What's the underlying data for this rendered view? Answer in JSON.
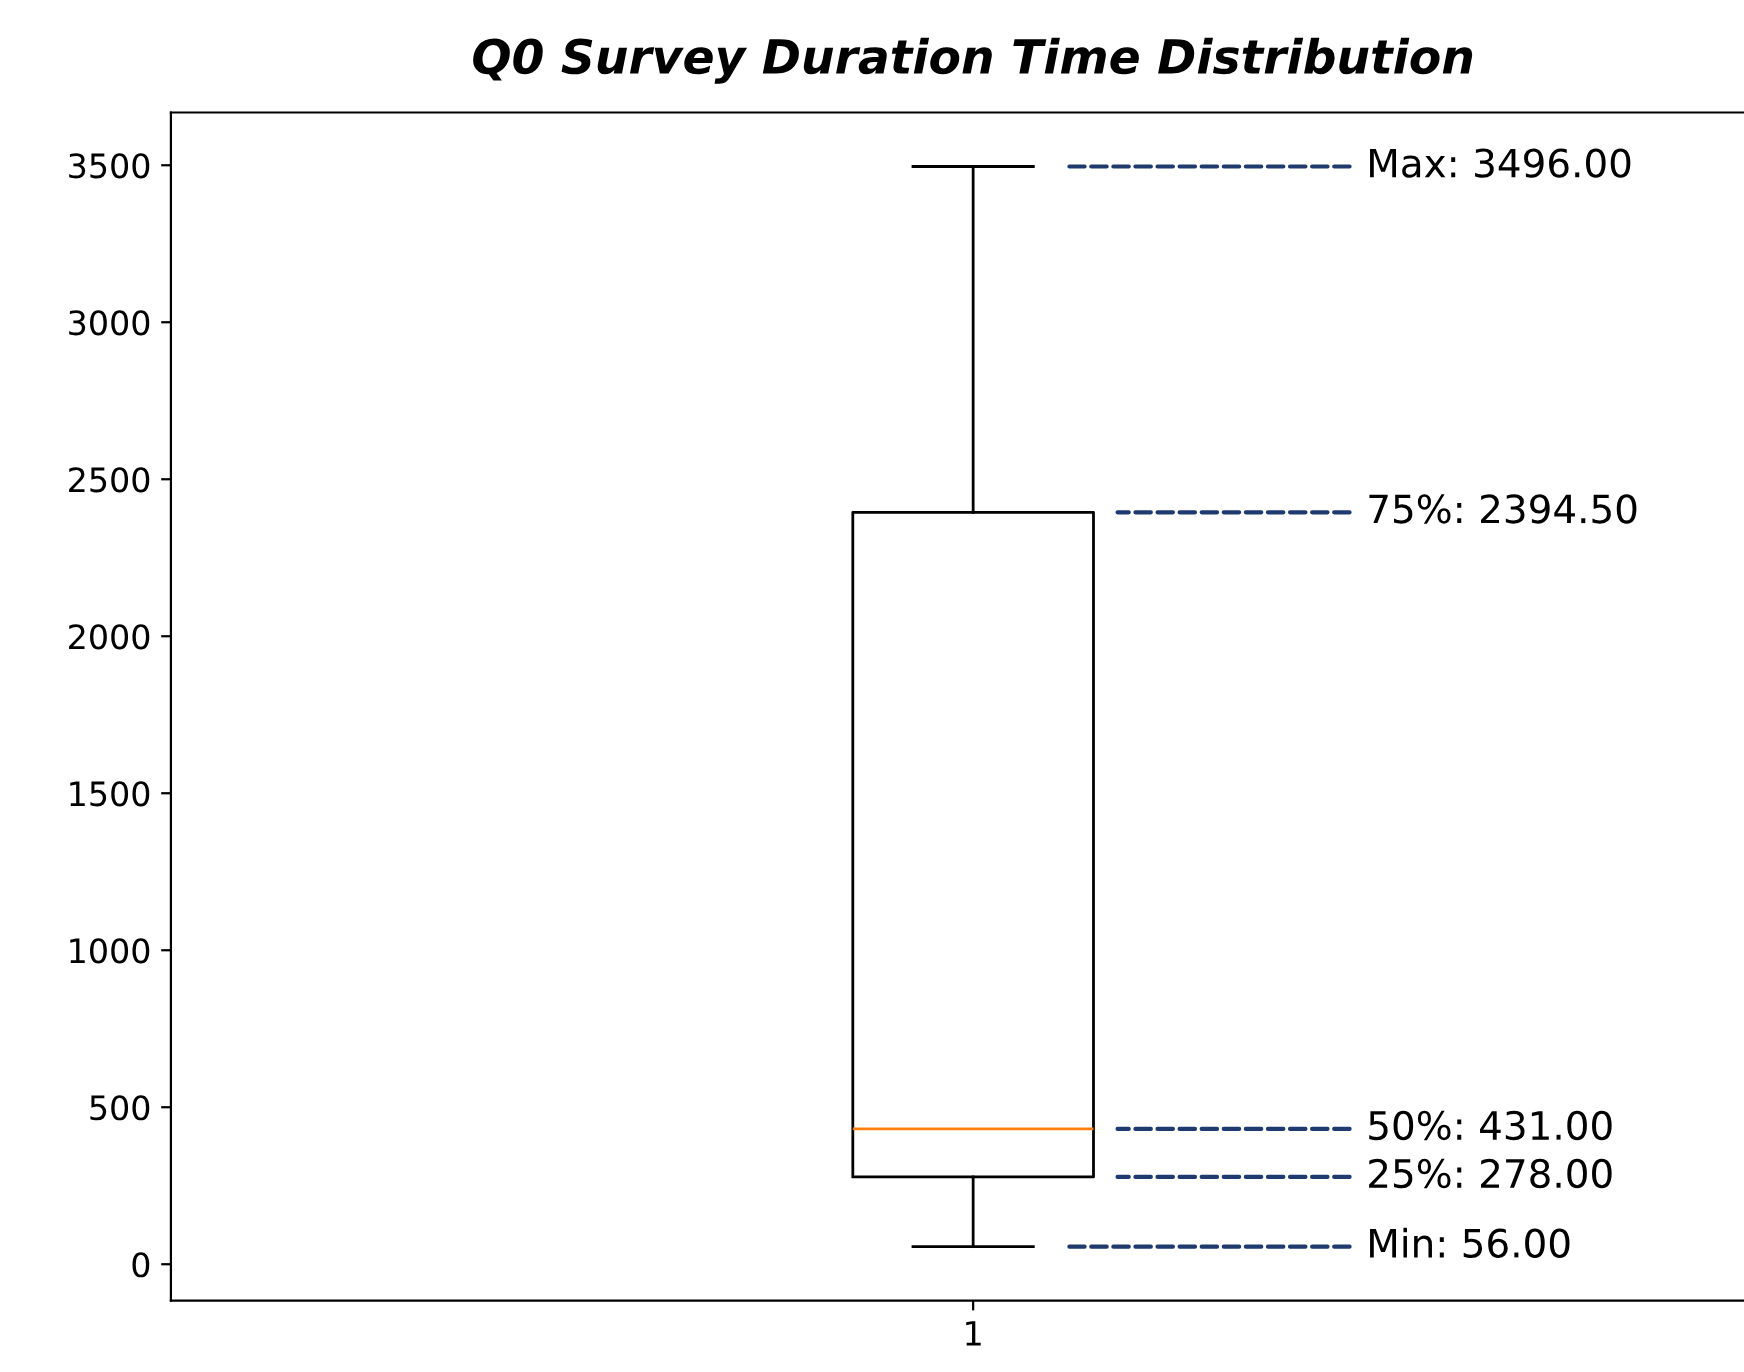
{
  "chart_data": {
    "type": "box",
    "title": "Q0 Survey Duration Time Distribution",
    "categories": [
      "1"
    ],
    "boxes": [
      {
        "low": 56,
        "q1": 278,
        "median": 431,
        "q3": 2394.5,
        "high": 3496
      }
    ],
    "ylim": [
      -116,
      3668
    ],
    "yticks": [
      0,
      500,
      1000,
      1500,
      2000,
      2500,
      3000,
      3500
    ],
    "grid": false,
    "legend": false,
    "annotations": [
      "Max: 3496.00",
      "75%: 2394.50",
      "50%: 431.00",
      "25%: 278.00",
      "Min: 56.00"
    ]
  }
}
